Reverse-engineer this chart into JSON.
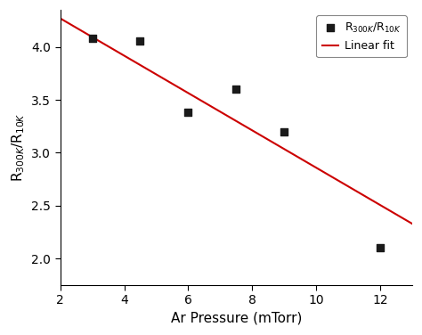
{
  "x_data": [
    3,
    4.5,
    6,
    7.5,
    9,
    12
  ],
  "y_data": [
    4.08,
    4.06,
    3.38,
    3.6,
    3.2,
    2.1
  ],
  "line_x": [
    2,
    13
  ],
  "line_y": [
    4.27,
    2.33
  ],
  "xlabel": "Ar Pressure (mTorr)",
  "ylabel": "R$_{300K}$/R$_{10K}$",
  "xlim": [
    2,
    13
  ],
  "ylim": [
    1.75,
    4.35
  ],
  "xticks": [
    2,
    4,
    6,
    8,
    10,
    12
  ],
  "yticks": [
    2.0,
    2.5,
    3.0,
    3.5,
    4.0
  ],
  "scatter_color": "#1a1a1a",
  "line_color": "#cc0000",
  "background_color": "#ffffff",
  "legend_label_scatter": "R$_{300K}$/R$_{10K}$",
  "legend_label_line": "Linear fit",
  "marker": "s",
  "marker_size": 6
}
